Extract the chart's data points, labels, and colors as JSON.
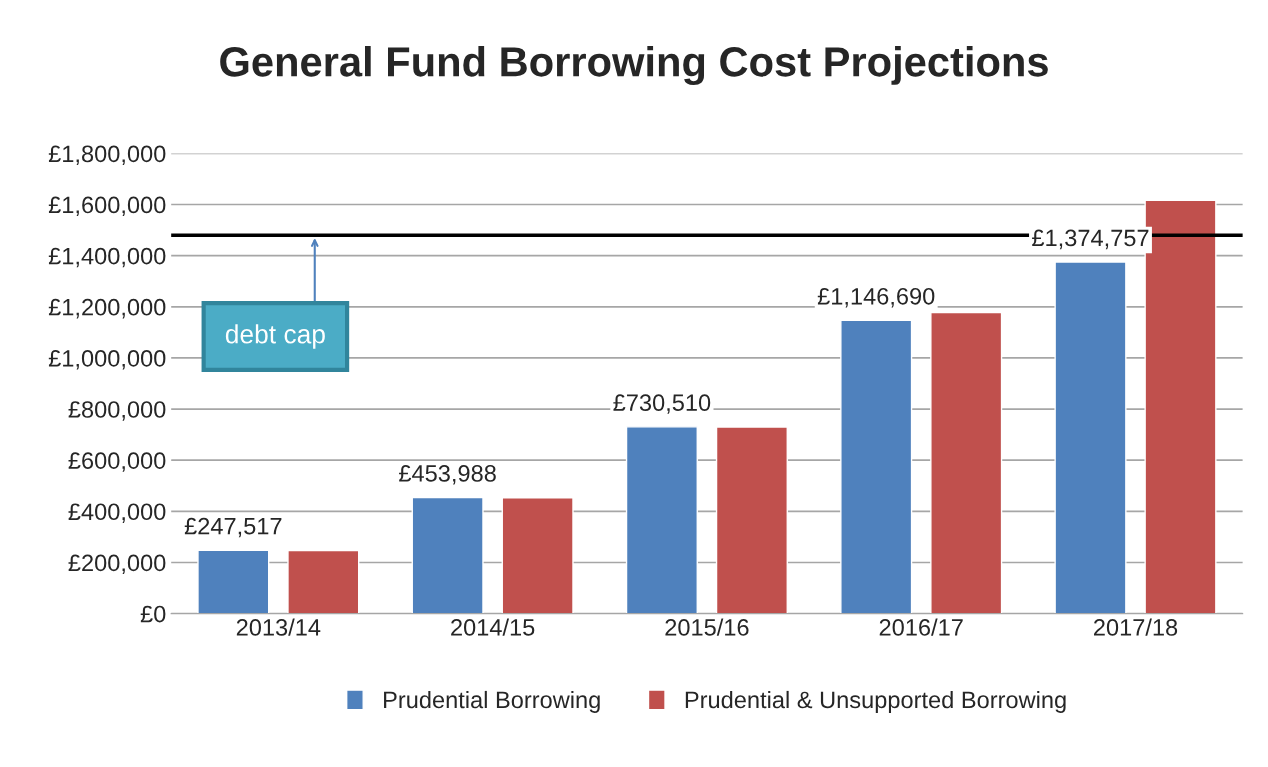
{
  "chart_data": {
    "type": "bar",
    "title": "General Fund Borrowing Cost Projections",
    "categories": [
      "2013/14",
      "2014/15",
      "2015/16",
      "2016/17",
      "2017/18"
    ],
    "series": [
      {
        "name": "Prudential Borrowing",
        "color": "#4f81bd",
        "values": [
          247517,
          453988,
          730510,
          1146690,
          1374757
        ],
        "value_labels": [
          "£247,517",
          "£453,988",
          "£730,510",
          "£1,146,690",
          "£1,374,757"
        ]
      },
      {
        "name": "Prudential & Unsupported Borrowing",
        "color": "#c0504d",
        "values": [
          247000,
          453000,
          730000,
          1177000,
          1617000
        ]
      }
    ],
    "ylim": [
      0,
      1800000
    ],
    "yticks": [
      {
        "value": 0,
        "label": "£0"
      },
      {
        "value": 200000,
        "label": "£200,000"
      },
      {
        "value": 400000,
        "label": "£400,000"
      },
      {
        "value": 600000,
        "label": "£600,000"
      },
      {
        "value": 800000,
        "label": "£800,000"
      },
      {
        "value": 1000000,
        "label": "£1,000,000"
      },
      {
        "value": 1200000,
        "label": "£1,200,000"
      },
      {
        "value": 1400000,
        "label": "£1,400,000"
      },
      {
        "value": 1600000,
        "label": "£1,600,000"
      },
      {
        "value": 1800000,
        "label": "£1,800,000"
      }
    ],
    "ref_lines": [
      {
        "axis": "y",
        "value": 1480000,
        "label": "debt cap",
        "color": "#000000"
      }
    ],
    "grid": "y",
    "legend": "bottom"
  }
}
